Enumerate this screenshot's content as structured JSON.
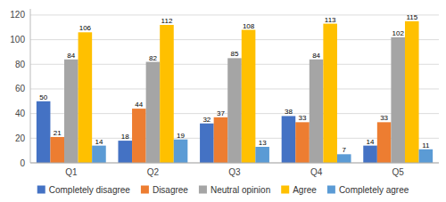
{
  "chart_data": {
    "type": "bar",
    "categories": [
      "Q1",
      "Q2",
      "Q3",
      "Q4",
      "Q5"
    ],
    "series": [
      {
        "name": "Completely disagree",
        "color": "#4472C4",
        "values": [
          50,
          18,
          32,
          38,
          14
        ]
      },
      {
        "name": "Disagree",
        "color": "#ED7D31",
        "values": [
          21,
          44,
          37,
          33,
          33
        ]
      },
      {
        "name": "Neutral opinion",
        "color": "#A5A5A5",
        "values": [
          84,
          82,
          85,
          84,
          102
        ]
      },
      {
        "name": "Agree",
        "color": "#FFC000",
        "values": [
          106,
          112,
          108,
          113,
          115
        ]
      },
      {
        "name": "Completely agree",
        "color": "#5B9BD5",
        "values": [
          14,
          19,
          13,
          7,
          11
        ]
      }
    ],
    "ylim": [
      0,
      125
    ],
    "yticks": [
      0,
      20,
      40,
      60,
      80,
      100,
      120
    ],
    "grid": true,
    "legend": "bottom",
    "data_labels": true
  }
}
